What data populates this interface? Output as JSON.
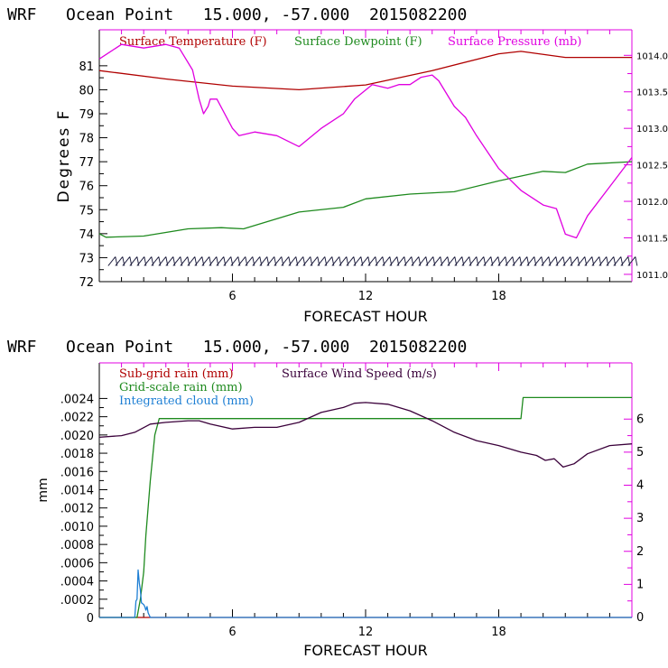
{
  "chart_data": [
    {
      "type": "line",
      "title": "WRF   Ocean Point   15.000, -57.000  2015082200",
      "xlabel": "FORECAST HOUR",
      "ylabel": "Degrees F",
      "xlim": [
        0,
        24
      ],
      "ylim": [
        72,
        82.5
      ],
      "y2lim": [
        1010.9,
        1014.35
      ],
      "x_ticks": [
        6,
        12,
        18
      ],
      "x_tick_labels": [
        "6",
        "12",
        "18"
      ],
      "y_ticks": [
        72,
        73,
        74,
        75,
        76,
        77,
        78,
        79,
        80,
        81
      ],
      "y_tick_labels": [
        "72",
        "73",
        "74",
        "75",
        "76",
        "77",
        "78",
        "79",
        "80",
        "81"
      ],
      "y2_ticks": [
        1011.0,
        1011.5,
        1012.0,
        1012.5,
        1013.0,
        1013.5,
        1014.0
      ],
      "y2_tick_labels": [
        "1011.0",
        "1011.5",
        "1012.0",
        "1012.5",
        "1013.0",
        "1013.5",
        "1014.0"
      ],
      "series": [
        {
          "name": "Surface Temperature (F)",
          "color": "#b00000",
          "axis": "left",
          "x": [
            0,
            3,
            6,
            9,
            12,
            15,
            18,
            19,
            21,
            24
          ],
          "values": [
            80.8,
            80.45,
            80.15,
            80.0,
            80.2,
            80.8,
            81.5,
            81.6,
            81.35,
            81.35
          ]
        },
        {
          "name": "Surface Dewpoint (F)",
          "color": "#1e8a1e",
          "axis": "left",
          "x": [
            0,
            0.3,
            2,
            4,
            5.5,
            6.5,
            9,
            11,
            12,
            14,
            16,
            18,
            20,
            21,
            22,
            24
          ],
          "values": [
            74.0,
            73.85,
            73.9,
            74.2,
            74.25,
            74.2,
            74.9,
            75.1,
            75.45,
            75.65,
            75.75,
            76.2,
            76.6,
            76.55,
            76.9,
            77.0
          ]
        },
        {
          "name": "Surface Pressure (mb)",
          "color": "#e000e0",
          "axis": "right",
          "x": [
            0,
            1,
            2,
            3,
            3.6,
            4.2,
            4.5,
            4.7,
            4.9,
            5.0,
            5.3,
            6,
            6.3,
            7,
            8,
            9,
            10,
            11,
            11.5,
            12.3,
            13,
            13.5,
            14,
            14.5,
            15,
            15.3,
            16,
            16.5,
            17,
            18,
            19,
            20,
            20.6,
            21,
            21.5,
            22,
            23,
            24
          ],
          "values": [
            1013.95,
            1014.15,
            1014.1,
            1014.15,
            1014.1,
            1013.8,
            1013.4,
            1013.2,
            1013.3,
            1013.4,
            1013.4,
            1013.0,
            1012.9,
            1012.95,
            1012.9,
            1012.75,
            1013.0,
            1013.2,
            1013.4,
            1013.6,
            1013.55,
            1013.6,
            1013.6,
            1013.7,
            1013.73,
            1013.65,
            1013.3,
            1013.15,
            1012.9,
            1012.45,
            1012.15,
            1011.95,
            1011.9,
            1011.55,
            1011.5,
            1011.8,
            1012.2,
            1012.6
          ]
        }
      ]
    },
    {
      "type": "line",
      "title": "WRF   Ocean Point   15.000, -57.000  2015082200",
      "xlabel": "FORECAST HOUR",
      "ylabel": "mm",
      "xlim": [
        0,
        24
      ],
      "ylim": [
        0,
        0.00279
      ],
      "y2lim": [
        0,
        7.7
      ],
      "x_ticks": [
        6,
        12,
        18
      ],
      "x_tick_labels": [
        "6",
        "12",
        "18"
      ],
      "y_ticks": [
        0,
        0.0002,
        0.0004,
        0.0006,
        0.0008,
        0.001,
        0.0012,
        0.0014,
        0.0016,
        0.0018,
        0.002,
        0.0022,
        0.0024
      ],
      "y_tick_labels": [
        "0",
        ".0002",
        ".0004",
        ".0006",
        ".0008",
        ".0010",
        ".0012",
        ".0014",
        ".0016",
        ".0018",
        ".0020",
        ".0022",
        ".0024"
      ],
      "y2_ticks": [
        0,
        1,
        2,
        3,
        4,
        5,
        6
      ],
      "y2_tick_labels": [
        "0",
        "1",
        "2",
        "3",
        "4",
        "5",
        "6"
      ],
      "series": [
        {
          "name": "Sub-grid rain (mm)",
          "color": "#b00000",
          "axis": "left",
          "x": [
            0,
            24
          ],
          "values": [
            0,
            0
          ]
        },
        {
          "name": "Grid-scale rain (mm)",
          "color": "#1e8a1e",
          "axis": "left",
          "x": [
            0,
            1.7,
            1.85,
            2.0,
            2.1,
            2.3,
            2.5,
            2.7,
            19.0,
            19.1,
            24
          ],
          "values": [
            0,
            0,
            0.0002,
            0.0005,
            0.0009,
            0.0015,
            0.002,
            0.00218,
            0.00218,
            0.00241,
            0.00241
          ]
        },
        {
          "name": "Integrated cloud (mm)",
          "color": "#1e7fd4",
          "axis": "left",
          "x": [
            0,
            1.6,
            1.65,
            1.7,
            1.75,
            1.8,
            1.85,
            1.9,
            2.0,
            2.05,
            2.1,
            2.15,
            2.2,
            2.3,
            24
          ],
          "values": [
            0,
            0,
            0.00018,
            0.0002,
            0.00052,
            0.00038,
            0.0003,
            0.00016,
            0.00014,
            0.00012,
            8e-05,
            0.00012,
            5e-05,
            0,
            0
          ]
        },
        {
          "name": "Surface Wind Speed (m/s)",
          "color": "#3a003a",
          "axis": "right",
          "x": [
            0,
            1,
            1.6,
            2.3,
            3,
            4,
            4.5,
            5,
            6,
            7,
            8,
            9,
            10,
            11,
            11.5,
            12,
            13,
            14,
            15,
            16,
            17,
            18,
            19,
            19.7,
            20.1,
            20.5,
            20.9,
            21.4,
            22,
            23,
            24
          ],
          "values": [
            5.45,
            5.5,
            5.6,
            5.85,
            5.9,
            5.95,
            5.95,
            5.85,
            5.7,
            5.75,
            5.75,
            5.9,
            6.2,
            6.35,
            6.48,
            6.5,
            6.45,
            6.25,
            5.95,
            5.6,
            5.35,
            5.2,
            5.0,
            4.9,
            4.75,
            4.8,
            4.55,
            4.65,
            4.95,
            5.2,
            5.25
          ]
        }
      ]
    }
  ]
}
